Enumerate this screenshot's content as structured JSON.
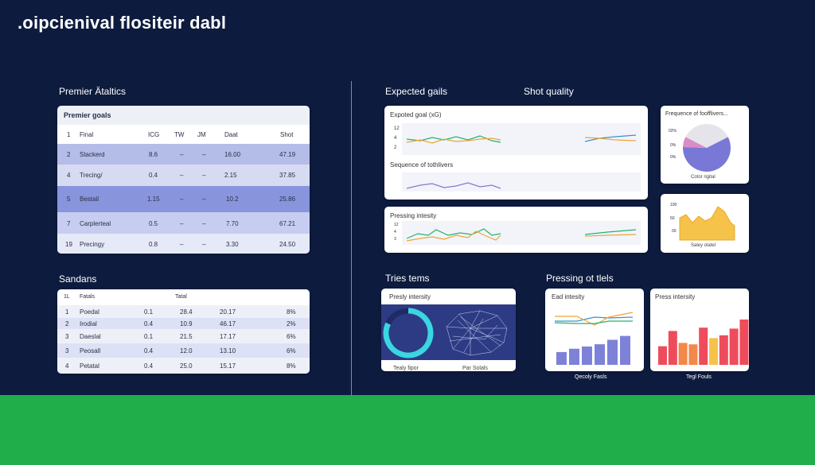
{
  "app": {
    "title": ".oipcienival flositeir dabl"
  },
  "sections": {
    "premier": "Premier Ätaltics",
    "sandans": "Sandans",
    "expected": "Expected gails",
    "shot_quality": "Shot quality",
    "tries": "Tries tems",
    "pressing": "Pressing ot tlels"
  },
  "goals_table": {
    "title": "Premier goals",
    "headers": [
      "1",
      "Final",
      "ICG",
      "TW",
      "JM",
      "Daat",
      "Shot"
    ],
    "rows": [
      [
        "2",
        "Stackerd",
        "8.6",
        "–",
        "–",
        "16.00",
        "47.19"
      ],
      [
        "4",
        "Trecing/",
        "0.4",
        "–",
        "–",
        "2.15",
        "37.85"
      ],
      [
        "5",
        "Bestail",
        "1.15",
        "–",
        "–",
        "10.2",
        "25.86"
      ],
      [
        "7",
        "Carplerteal",
        "0.5",
        "–",
        "–",
        "7.70",
        "67.21"
      ],
      [
        "19",
        "Precingy",
        "0.8",
        "–",
        "–",
        "3.30",
        "24.50"
      ]
    ]
  },
  "sandans_table": {
    "headers": [
      "1L",
      "Fatals",
      "Tatal"
    ],
    "rows": [
      [
        "1",
        "Poedal",
        "0.1",
        "28.4",
        "20.17",
        "8%"
      ],
      [
        "2",
        "Irodial",
        "0.4",
        "10.9",
        "46.17",
        "2%"
      ],
      [
        "3",
        "Daeslal",
        "0.1",
        "21.5",
        "17.17",
        "6%"
      ],
      [
        "3",
        "Peosall",
        "0.4",
        "12.0",
        "13.10",
        "6%"
      ],
      [
        "4",
        "Petatal",
        "0.4",
        "25.0",
        "15.17",
        "8%"
      ]
    ]
  },
  "xg_card": {
    "title": "Expoted goal (xG)",
    "y_ticks": [
      "12",
      "4",
      "2"
    ],
    "subtitle": "Sequence of tothlivers"
  },
  "freq_card": {
    "title": "Frequence of foofflivers...",
    "ticks": [
      "02%",
      "0%",
      "0%"
    ],
    "caption": "Cotor rigital",
    "pie": [
      0.35,
      0.58,
      0.07
    ],
    "colors": [
      "#e4e4ea",
      "#7a78d6",
      "#d98cc8"
    ]
  },
  "pressing_card": {
    "title": "Pressing intesity",
    "y_ticks": [
      "12",
      "4",
      "3"
    ]
  },
  "area_card": {
    "ticks": [
      "100",
      "50",
      "00"
    ],
    "caption": "Saley olatel"
  },
  "donut_card": {
    "title": "Presly intersity",
    "caption_left": "Tealy fipor",
    "caption_right": "Par Solals",
    "donut_fraction": 0.82
  },
  "bar_card_1": {
    "title": "Ead intesity",
    "caption": "Qecoly Fasls",
    "values": [
      0.23,
      0.29,
      0.33,
      0.37,
      0.45,
      0.52
    ]
  },
  "bar_card_2": {
    "title": "Press intersity",
    "caption": "Tegl Fouls",
    "values": [
      0.39,
      0.71,
      0.46,
      0.43,
      0.78,
      0.56,
      0.62,
      0.76,
      0.95
    ]
  },
  "colors": {
    "background": "#0d1b3e",
    "grass": "#1fae4a",
    "row_highlight": "#7f8ed8",
    "line_green": "#22b36b",
    "line_orange": "#f0a531",
    "line_blue": "#3a8fd8",
    "line_purple": "#8a76d1"
  }
}
